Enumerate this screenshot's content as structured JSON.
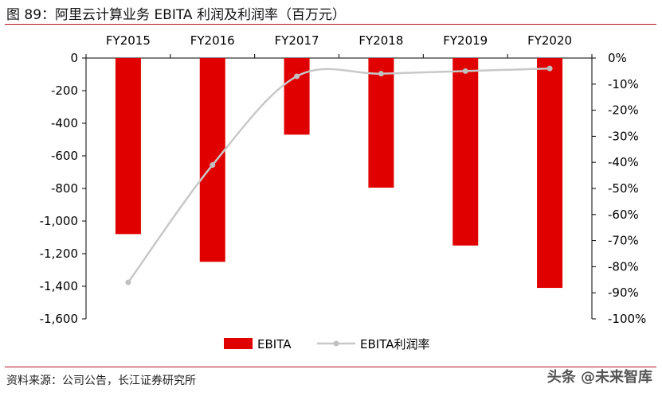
{
  "figure": {
    "title": "图 89：阿里云计算业务 EBITA 利润及利润率（百万元）",
    "source": "资料来源：公司公告，长江证券研究所",
    "watermark": "头条 @未来智库"
  },
  "chart_data": {
    "type": "bar",
    "categories": [
      "FY2015",
      "FY2016",
      "FY2017",
      "FY2018",
      "FY2019",
      "FY2020"
    ],
    "series": [
      {
        "name": "EBITA",
        "type": "bar",
        "axis": "left",
        "color": "#e00000",
        "values": [
          -1080,
          -1250,
          -470,
          -795,
          -1150,
          -1410
        ]
      },
      {
        "name": "EBITA利润率",
        "type": "line",
        "axis": "right",
        "color": "#c8c8c8",
        "values": [
          -86,
          -41,
          -7,
          -6,
          -5,
          -4
        ]
      }
    ],
    "y_left": {
      "ylim": [
        -1600,
        0
      ],
      "ticks": [
        "0",
        "-200",
        "-400",
        "-600",
        "-800",
        "-1,000",
        "-1,200",
        "-1,400",
        "-1,600"
      ]
    },
    "y_right": {
      "ylim": [
        -100,
        0
      ],
      "ticks": [
        "0%",
        "-10%",
        "-20%",
        "-30%",
        "-40%",
        "-50%",
        "-60%",
        "-70%",
        "-80%",
        "-90%",
        "-100%"
      ]
    },
    "legend_position": "bottom-center",
    "grid": false
  }
}
